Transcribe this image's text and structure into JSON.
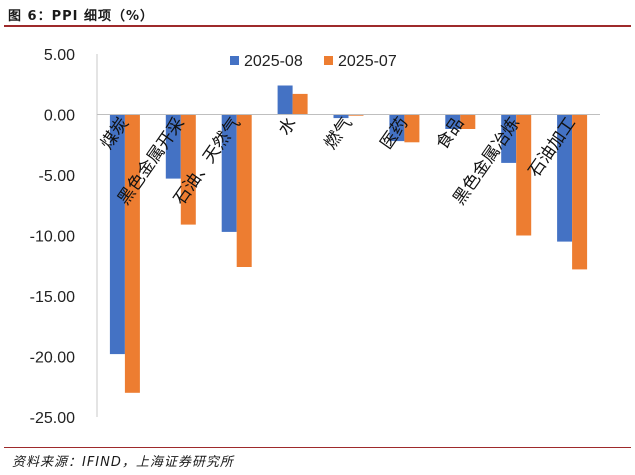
{
  "header": {
    "title": "图 6：PPI 细项（%）"
  },
  "footer": {
    "source": "资料来源：IFIND，上海证券研究所"
  },
  "colors": {
    "series_1": "#4472C4",
    "series_2": "#ED7D31",
    "accent_rule": "#9E2A2B"
  },
  "chart_data": {
    "type": "bar",
    "title": "PPI 细项（%）",
    "xlabel": "",
    "ylabel": "",
    "categories": [
      "煤炭",
      "黑色金属开采",
      "石油、天然气",
      "水",
      "燃气",
      "医药",
      "食品",
      "黑色金属冶炼",
      "石油加工"
    ],
    "series": [
      {
        "name": "2025-08",
        "values": [
          -19.8,
          -5.3,
          -9.7,
          2.4,
          -0.3,
          -2.2,
          -1.2,
          -4.0,
          -10.5
        ]
      },
      {
        "name": "2025-07",
        "values": [
          -23.0,
          -9.1,
          -12.6,
          1.7,
          -0.1,
          -2.3,
          -1.2,
          -10.0,
          -12.8
        ]
      }
    ],
    "ylim": [
      -25,
      5
    ],
    "yticks": [
      "5.00",
      "0.00",
      "-5.00",
      "-10.00",
      "-15.00",
      "-20.00",
      "-25.00"
    ],
    "grid": false,
    "legend": "top"
  }
}
